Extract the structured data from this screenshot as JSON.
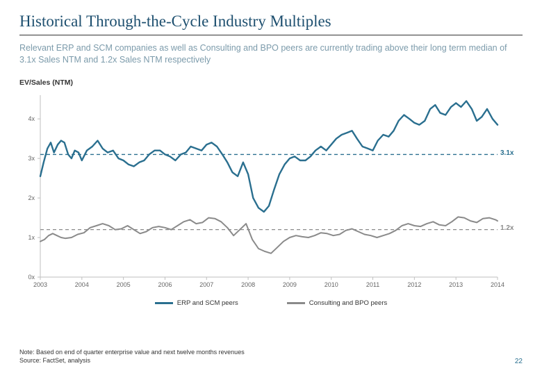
{
  "title": "Historical Through-the-Cycle Industry Multiples",
  "subtitle": "Relevant ERP and SCM companies as well as Consulting and BPO peers are currently trading above their long term median of 3.1x Sales NTM and 1.2x Sales NTM respectively",
  "chart": {
    "type": "line",
    "metric_label": "EV/Sales (NTM)",
    "x_years": [
      "2003",
      "2004",
      "2005",
      "2006",
      "2007",
      "2008",
      "2009",
      "2010",
      "2011",
      "2012",
      "2013",
      "2014"
    ],
    "ylim": [
      0,
      4.6
    ],
    "yticks": [
      0,
      1,
      2,
      3,
      4
    ],
    "ytick_labels": [
      "0x",
      "1x",
      "2x",
      "3x",
      "4x"
    ],
    "background_color": "#ffffff",
    "axis_color": "#bfbfbf",
    "grid": false,
    "series": [
      {
        "name": "ERP and SCM peers",
        "color": "#2a6f8f",
        "width": 2.4,
        "reference": {
          "value": 3.1,
          "label": "3.1x",
          "dash": "5,4",
          "color": "#2a6f8f"
        },
        "points": [
          [
            0.0,
            2.55
          ],
          [
            0.08,
            2.9
          ],
          [
            0.17,
            3.25
          ],
          [
            0.25,
            3.4
          ],
          [
            0.33,
            3.15
          ],
          [
            0.42,
            3.35
          ],
          [
            0.5,
            3.45
          ],
          [
            0.58,
            3.4
          ],
          [
            0.67,
            3.1
          ],
          [
            0.75,
            3.0
          ],
          [
            0.83,
            3.2
          ],
          [
            0.92,
            3.15
          ],
          [
            1.0,
            2.95
          ],
          [
            1.12,
            3.2
          ],
          [
            1.25,
            3.3
          ],
          [
            1.38,
            3.45
          ],
          [
            1.5,
            3.25
          ],
          [
            1.62,
            3.15
          ],
          [
            1.75,
            3.2
          ],
          [
            1.88,
            3.0
          ],
          [
            2.0,
            2.95
          ],
          [
            2.12,
            2.85
          ],
          [
            2.25,
            2.8
          ],
          [
            2.38,
            2.9
          ],
          [
            2.5,
            2.95
          ],
          [
            2.62,
            3.1
          ],
          [
            2.75,
            3.2
          ],
          [
            2.88,
            3.2
          ],
          [
            3.0,
            3.1
          ],
          [
            3.12,
            3.05
          ],
          [
            3.25,
            2.95
          ],
          [
            3.38,
            3.1
          ],
          [
            3.5,
            3.15
          ],
          [
            3.62,
            3.3
          ],
          [
            3.75,
            3.25
          ],
          [
            3.88,
            3.2
          ],
          [
            4.0,
            3.35
          ],
          [
            4.12,
            3.4
          ],
          [
            4.25,
            3.3
          ],
          [
            4.38,
            3.1
          ],
          [
            4.5,
            2.9
          ],
          [
            4.62,
            2.65
          ],
          [
            4.75,
            2.55
          ],
          [
            4.88,
            2.9
          ],
          [
            5.0,
            2.6
          ],
          [
            5.12,
            2.0
          ],
          [
            5.25,
            1.75
          ],
          [
            5.38,
            1.65
          ],
          [
            5.5,
            1.8
          ],
          [
            5.62,
            2.2
          ],
          [
            5.75,
            2.6
          ],
          [
            5.88,
            2.85
          ],
          [
            6.0,
            3.0
          ],
          [
            6.12,
            3.05
          ],
          [
            6.25,
            2.95
          ],
          [
            6.38,
            2.95
          ],
          [
            6.5,
            3.05
          ],
          [
            6.62,
            3.2
          ],
          [
            6.75,
            3.3
          ],
          [
            6.88,
            3.2
          ],
          [
            7.0,
            3.35
          ],
          [
            7.12,
            3.5
          ],
          [
            7.25,
            3.6
          ],
          [
            7.38,
            3.65
          ],
          [
            7.5,
            3.7
          ],
          [
            7.62,
            3.5
          ],
          [
            7.75,
            3.3
          ],
          [
            7.88,
            3.25
          ],
          [
            8.0,
            3.2
          ],
          [
            8.12,
            3.45
          ],
          [
            8.25,
            3.6
          ],
          [
            8.38,
            3.55
          ],
          [
            8.5,
            3.7
          ],
          [
            8.62,
            3.95
          ],
          [
            8.75,
            4.1
          ],
          [
            8.88,
            4.0
          ],
          [
            9.0,
            3.9
          ],
          [
            9.12,
            3.85
          ],
          [
            9.25,
            3.95
          ],
          [
            9.38,
            4.25
          ],
          [
            9.5,
            4.35
          ],
          [
            9.62,
            4.15
          ],
          [
            9.75,
            4.1
          ],
          [
            9.88,
            4.3
          ],
          [
            10.0,
            4.4
          ],
          [
            10.12,
            4.3
          ],
          [
            10.25,
            4.45
          ],
          [
            10.38,
            4.25
          ],
          [
            10.5,
            3.95
          ],
          [
            10.62,
            4.05
          ],
          [
            10.75,
            4.25
          ],
          [
            10.88,
            4.0
          ],
          [
            11.0,
            3.85
          ]
        ]
      },
      {
        "name": "Consulting and BPO peers",
        "color": "#8a8a8a",
        "width": 2.0,
        "reference": {
          "value": 1.2,
          "label": "1.2x",
          "dash": "5,4",
          "color": "#8a8a8a"
        },
        "points": [
          [
            0.0,
            0.9
          ],
          [
            0.1,
            0.95
          ],
          [
            0.2,
            1.05
          ],
          [
            0.3,
            1.1
          ],
          [
            0.4,
            1.05
          ],
          [
            0.5,
            1.0
          ],
          [
            0.6,
            0.98
          ],
          [
            0.75,
            1.0
          ],
          [
            0.9,
            1.08
          ],
          [
            1.05,
            1.12
          ],
          [
            1.2,
            1.25
          ],
          [
            1.35,
            1.3
          ],
          [
            1.5,
            1.35
          ],
          [
            1.65,
            1.3
          ],
          [
            1.8,
            1.2
          ],
          [
            1.95,
            1.22
          ],
          [
            2.1,
            1.3
          ],
          [
            2.25,
            1.2
          ],
          [
            2.4,
            1.1
          ],
          [
            2.55,
            1.15
          ],
          [
            2.7,
            1.25
          ],
          [
            2.85,
            1.28
          ],
          [
            3.0,
            1.25
          ],
          [
            3.15,
            1.2
          ],
          [
            3.3,
            1.3
          ],
          [
            3.45,
            1.4
          ],
          [
            3.6,
            1.45
          ],
          [
            3.75,
            1.35
          ],
          [
            3.9,
            1.38
          ],
          [
            4.05,
            1.5
          ],
          [
            4.2,
            1.48
          ],
          [
            4.35,
            1.4
          ],
          [
            4.5,
            1.25
          ],
          [
            4.65,
            1.05
          ],
          [
            4.8,
            1.2
          ],
          [
            4.95,
            1.35
          ],
          [
            5.1,
            0.95
          ],
          [
            5.25,
            0.72
          ],
          [
            5.4,
            0.65
          ],
          [
            5.55,
            0.6
          ],
          [
            5.7,
            0.75
          ],
          [
            5.85,
            0.9
          ],
          [
            6.0,
            1.0
          ],
          [
            6.15,
            1.05
          ],
          [
            6.3,
            1.02
          ],
          [
            6.45,
            1.0
          ],
          [
            6.6,
            1.05
          ],
          [
            6.75,
            1.12
          ],
          [
            6.9,
            1.1
          ],
          [
            7.05,
            1.05
          ],
          [
            7.2,
            1.08
          ],
          [
            7.35,
            1.18
          ],
          [
            7.5,
            1.22
          ],
          [
            7.65,
            1.15
          ],
          [
            7.8,
            1.08
          ],
          [
            7.95,
            1.05
          ],
          [
            8.1,
            1.0
          ],
          [
            8.25,
            1.05
          ],
          [
            8.4,
            1.1
          ],
          [
            8.55,
            1.18
          ],
          [
            8.7,
            1.3
          ],
          [
            8.85,
            1.35
          ],
          [
            9.0,
            1.3
          ],
          [
            9.15,
            1.28
          ],
          [
            9.3,
            1.35
          ],
          [
            9.45,
            1.4
          ],
          [
            9.6,
            1.32
          ],
          [
            9.75,
            1.3
          ],
          [
            9.9,
            1.4
          ],
          [
            10.05,
            1.52
          ],
          [
            10.2,
            1.5
          ],
          [
            10.35,
            1.42
          ],
          [
            10.5,
            1.38
          ],
          [
            10.65,
            1.48
          ],
          [
            10.8,
            1.5
          ],
          [
            10.95,
            1.45
          ],
          [
            11.0,
            1.42
          ]
        ]
      }
    ]
  },
  "legend": {
    "s1": "ERP and SCM peers",
    "s2": "Consulting and BPO peers"
  },
  "footnote_line1": "Note: Based on end of quarter enterprise value and next twelve months revenues",
  "footnote_line2": "Source: FactSet, analysis",
  "page_number": "22",
  "ref1_label": "3.1x",
  "ref2_label": "1.2x"
}
